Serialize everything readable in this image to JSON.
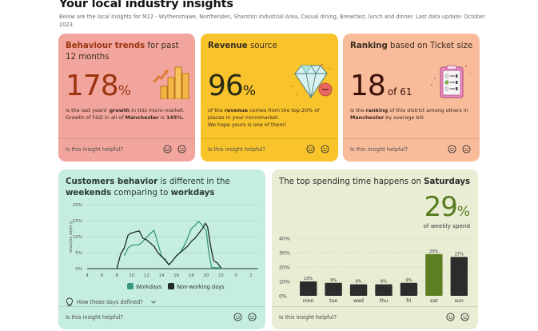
{
  "header": {
    "title": "Your local industry insights",
    "subtitle": "Below are the local insights for M22 - Wythenshawe, Northenden, Sharston Industrial Area, Casual dining, Breakfast, lunch and dinner. Last data update: October 2023."
  },
  "cards": {
    "trends": {
      "title_bold": "Behaviour trends",
      "title_rest": " for past 12 months",
      "value": "178",
      "unit": "%",
      "desc_1": "is the last years' ",
      "desc_bold_1": "growth",
      "desc_2": " in this micro-market. Growth of F&D in all of ",
      "desc_bold_2": "Manchester",
      "desc_3": " is ",
      "desc_bold_3": "145%.",
      "icon": "growth-bars-icon"
    },
    "revenue": {
      "title_bold": "Revenue",
      "title_rest": " source",
      "value": "96",
      "unit": "%",
      "desc_1": "of the ",
      "desc_bold_1": "revenue",
      "desc_2": " comes from the top 20% of places in your micromarket.",
      "desc_3": "We hope yours is one of them!",
      "icon": "diamond-icon"
    },
    "ranking": {
      "title_bold": "Ranking",
      "title_rest": " based on Ticket size",
      "value": "18",
      "unit": "of 61",
      "desc_1": "is the ",
      "desc_bold_1": "ranking",
      "desc_2": " of this district among others in ",
      "desc_bold_2": "Manchester",
      "desc_3": " by average bill.",
      "icon": "clipboard-checklist-icon"
    },
    "behavior": {
      "title_bold_1": "Customers behavior",
      "title_rest_1": " is different in the ",
      "title_bold_2": "weekends",
      "title_rest_2": " comparing to ",
      "title_bold_3": "workdays",
      "howto": "How those days defined?"
    },
    "spend": {
      "title_rest": "The top spending time happens on ",
      "title_bold": "Saturdays",
      "value": "29",
      "unit": "%",
      "sub": "of weekly spend"
    }
  },
  "feedback": {
    "question": "Is this insight helpful?"
  },
  "colors": {
    "workdays": "#3a9a7e",
    "non_working": "#1d2a25",
    "bar_default": "#2b2c2b",
    "bar_highlight": "#5d7f22"
  },
  "chart_data": [
    {
      "type": "line",
      "title": "Customers behavior is different in the weekends comparing to workdays",
      "xlabel": "",
      "ylabel": "% sales volumes",
      "x_ticks": [
        "4",
        "6",
        "8",
        "10",
        "12",
        "14",
        "16",
        "18",
        "20",
        "22",
        "0",
        "2"
      ],
      "y_ticks": [
        "0%",
        "5%",
        "10%",
        "15%",
        "20%"
      ],
      "ylim": [
        0,
        20
      ],
      "grid": true,
      "legend": "bottom",
      "series": [
        {
          "name": "Workdays",
          "x": [
            9,
            9.5,
            10,
            11,
            11.5,
            12,
            12.5,
            13,
            13.5,
            14,
            14.5,
            15,
            15.5,
            16,
            16.5,
            17,
            17.5,
            18,
            18.5,
            19,
            19.5,
            20,
            20.3,
            20.7,
            21,
            22
          ],
          "y": [
            4,
            6.5,
            7.3,
            7.5,
            8.5,
            9.8,
            11,
            12,
            8,
            4,
            2.5,
            1.2,
            2.5,
            4,
            5,
            7,
            9.5,
            12.5,
            13.5,
            14.8,
            13.5,
            12,
            6,
            0.5,
            0.3,
            0.2
          ]
        },
        {
          "name": "Non-working days",
          "x": [
            8,
            8.5,
            9,
            9.5,
            10,
            11,
            11.5,
            12,
            12.5,
            13,
            13.5,
            14,
            14.5,
            15,
            15.5,
            16,
            16.5,
            17,
            17.5,
            18,
            18.5,
            19,
            19.5,
            19.9,
            20.2,
            20.6,
            21,
            21.5,
            22
          ],
          "y": [
            0,
            4.5,
            6.5,
            10.5,
            11.2,
            11.8,
            9.5,
            9,
            8,
            7,
            5,
            3.8,
            2.8,
            1.2,
            2.5,
            4,
            5,
            6,
            7,
            8.5,
            9.5,
            11,
            12.5,
            14.2,
            13,
            7,
            2.5,
            1.8,
            0.2
          ]
        }
      ]
    },
    {
      "type": "bar",
      "title": "The top spending time happens on Saturdays",
      "categories": [
        "mon",
        "tue",
        "wed",
        "thu",
        "fri",
        "sat",
        "sun"
      ],
      "values": [
        10,
        9,
        8,
        8,
        9,
        29,
        27
      ],
      "labels": [
        "10%",
        "9%",
        "8%",
        "8%",
        "9%",
        "29%",
        "27%"
      ],
      "highlight": "sat",
      "y_ticks": [
        "0%",
        "10%",
        "20%",
        "30%",
        "40%"
      ],
      "ylim": [
        0,
        40
      ],
      "grid": true
    }
  ]
}
